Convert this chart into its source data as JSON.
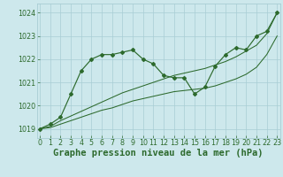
{
  "title": "Graphe pression niveau de la mer (hPa)",
  "x_hours": [
    0,
    1,
    2,
    3,
    4,
    5,
    6,
    7,
    8,
    9,
    10,
    11,
    12,
    13,
    14,
    15,
    16,
    17,
    18,
    19,
    20,
    21,
    22,
    23
  ],
  "y_actual": [
    1019.0,
    1019.2,
    1019.5,
    1020.5,
    1021.5,
    1022.0,
    1022.2,
    1022.2,
    1022.3,
    1022.4,
    1022.0,
    1021.8,
    1021.3,
    1021.2,
    1021.2,
    1020.5,
    1020.8,
    1021.7,
    1022.2,
    1022.5,
    1022.4,
    1023.0,
    1023.2,
    1024.0
  ],
  "y_upper": [
    1019.0,
    1019.1,
    1019.35,
    1019.55,
    1019.75,
    1019.95,
    1020.15,
    1020.35,
    1020.55,
    1020.7,
    1020.85,
    1021.0,
    1021.15,
    1021.3,
    1021.4,
    1021.5,
    1021.6,
    1021.75,
    1021.9,
    1022.1,
    1022.35,
    1022.6,
    1023.1,
    1024.0
  ],
  "y_lower": [
    1019.0,
    1019.05,
    1019.2,
    1019.35,
    1019.5,
    1019.65,
    1019.8,
    1019.9,
    1020.05,
    1020.2,
    1020.3,
    1020.4,
    1020.5,
    1020.6,
    1020.65,
    1020.7,
    1020.75,
    1020.85,
    1021.0,
    1021.15,
    1021.35,
    1021.65,
    1022.2,
    1023.0
  ],
  "line_color": "#2d6a2d",
  "bg_color": "#cde8ec",
  "grid_color": "#a8cdd4",
  "ylim": [
    1018.6,
    1024.4
  ],
  "yticks": [
    1019,
    1020,
    1021,
    1022,
    1023,
    1024
  ],
  "xticks": [
    0,
    1,
    2,
    3,
    4,
    5,
    6,
    7,
    8,
    9,
    10,
    11,
    12,
    13,
    14,
    15,
    16,
    17,
    18,
    19,
    20,
    21,
    22,
    23
  ],
  "tick_fontsize": 5.8,
  "xlabel_fontsize": 7.5
}
